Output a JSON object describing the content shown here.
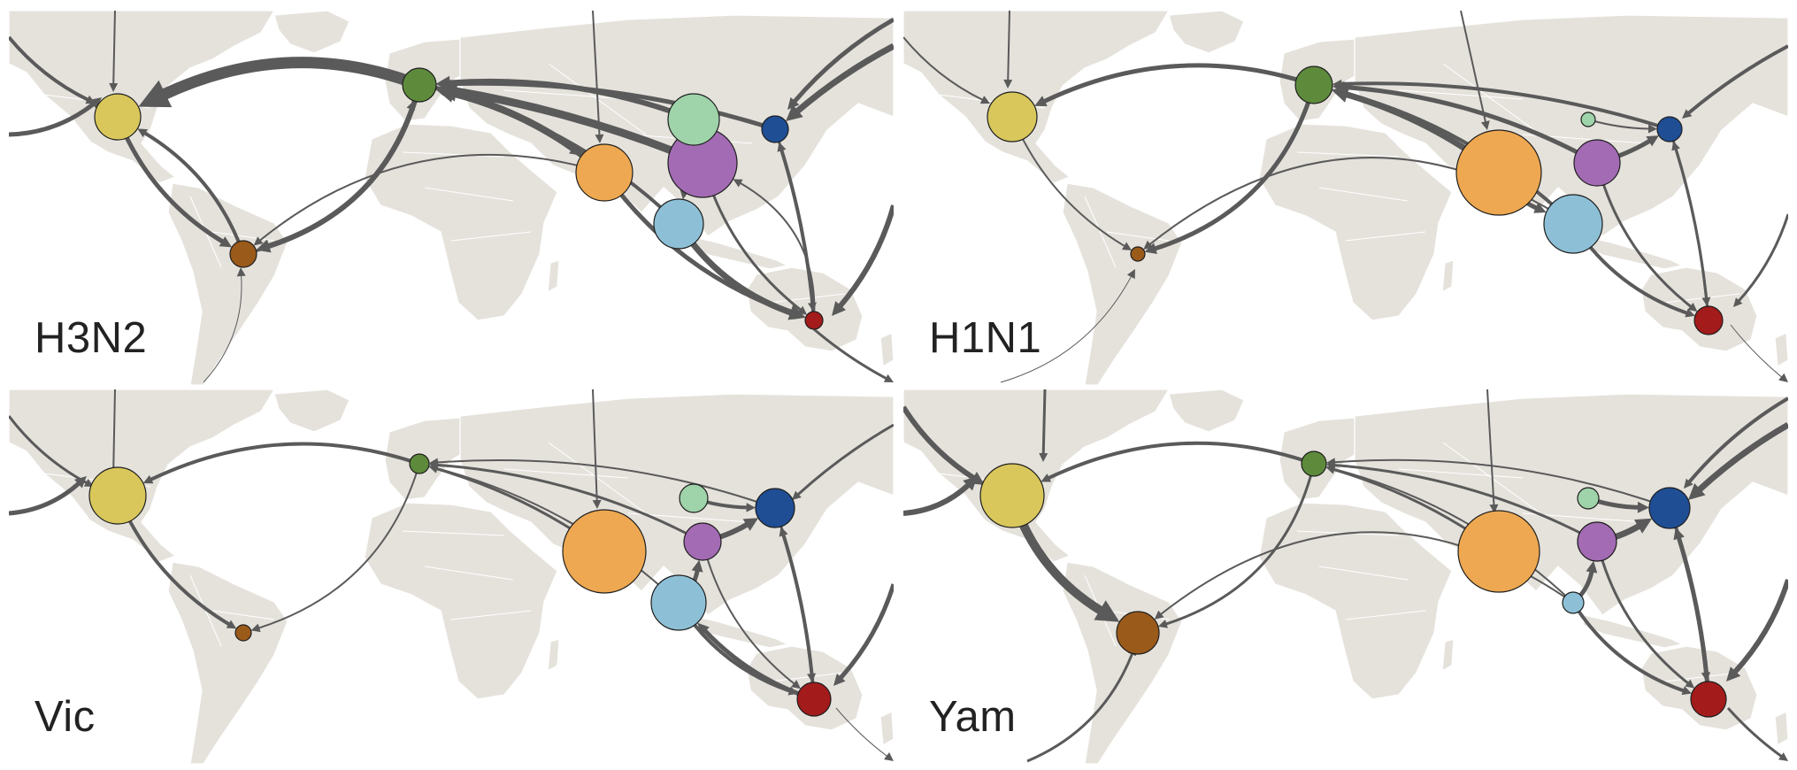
{
  "colors": {
    "land": "#e5e2dc",
    "border": "#ffffff",
    "edge": "#5a5a5a",
    "usa": "#d9c75c",
    "south_america": "#9a5a1a",
    "europe": "#5e8a3c",
    "india": "#eea851",
    "china": "#a36bb3",
    "north_china": "#9fd3a9",
    "japan_korea": "#1f4e95",
    "southeast_asia": "#8dc0d6",
    "oceania": "#a31b1b"
  },
  "panels": [
    {
      "label": "H3N2"
    },
    {
      "label": "H1N1"
    },
    {
      "label": "Vic"
    },
    {
      "label": "Yam"
    }
  ]
}
